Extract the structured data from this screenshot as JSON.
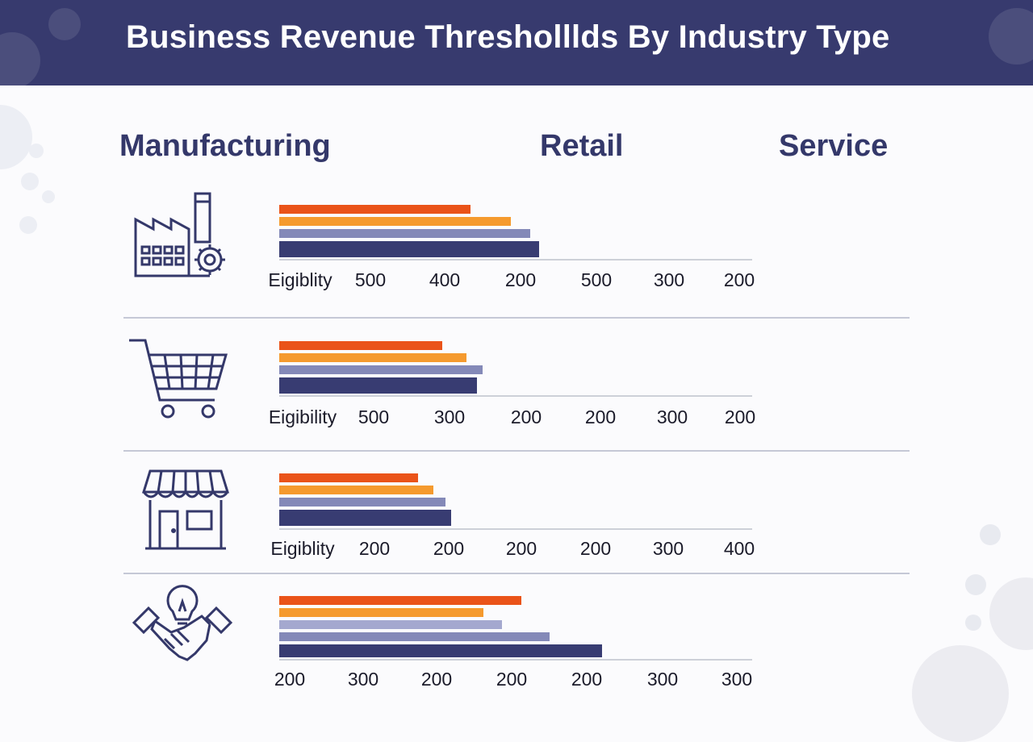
{
  "header": {
    "title": "Business Revenue Thresholllds By Industry Type"
  },
  "columns": [
    "Manufacturing",
    "Retail",
    "Service"
  ],
  "colors": {
    "header_bg": "#373a6e",
    "series": [
      "#ea5319",
      "#f59a2e",
      "#8489b8",
      "#383c72"
    ]
  },
  "icons": [
    "factory-icon",
    "shopping-cart-icon",
    "storefront-icon",
    "handshake-lightbulb-icon"
  ],
  "chart_data": [
    {
      "type": "bar",
      "orientation": "horizontal",
      "category": "factory",
      "values": [
        237,
        287,
        311,
        322
      ],
      "tick_labels": [
        "Eigiblity",
        "500",
        "400",
        "200",
        "500",
        "300",
        "200"
      ]
    },
    {
      "type": "bar",
      "orientation": "horizontal",
      "category": "shopping-cart",
      "values": [
        202,
        232,
        252,
        245
      ],
      "tick_labels": [
        "Eigibility",
        "500",
        "300",
        "200",
        "200",
        "300",
        "200"
      ]
    },
    {
      "type": "bar",
      "orientation": "horizontal",
      "category": "storefront",
      "values": [
        172,
        191,
        206,
        213
      ],
      "tick_labels": [
        "Eigiblity",
        "200",
        "200",
        "200",
        "200",
        "300",
        "400"
      ]
    },
    {
      "type": "bar",
      "orientation": "horizontal",
      "category": "handshake",
      "values": [
        300,
        253,
        276,
        335,
        400
      ],
      "tick_labels": [
        "200",
        "300",
        "200",
        "200",
        "200",
        "300",
        "300"
      ]
    }
  ]
}
